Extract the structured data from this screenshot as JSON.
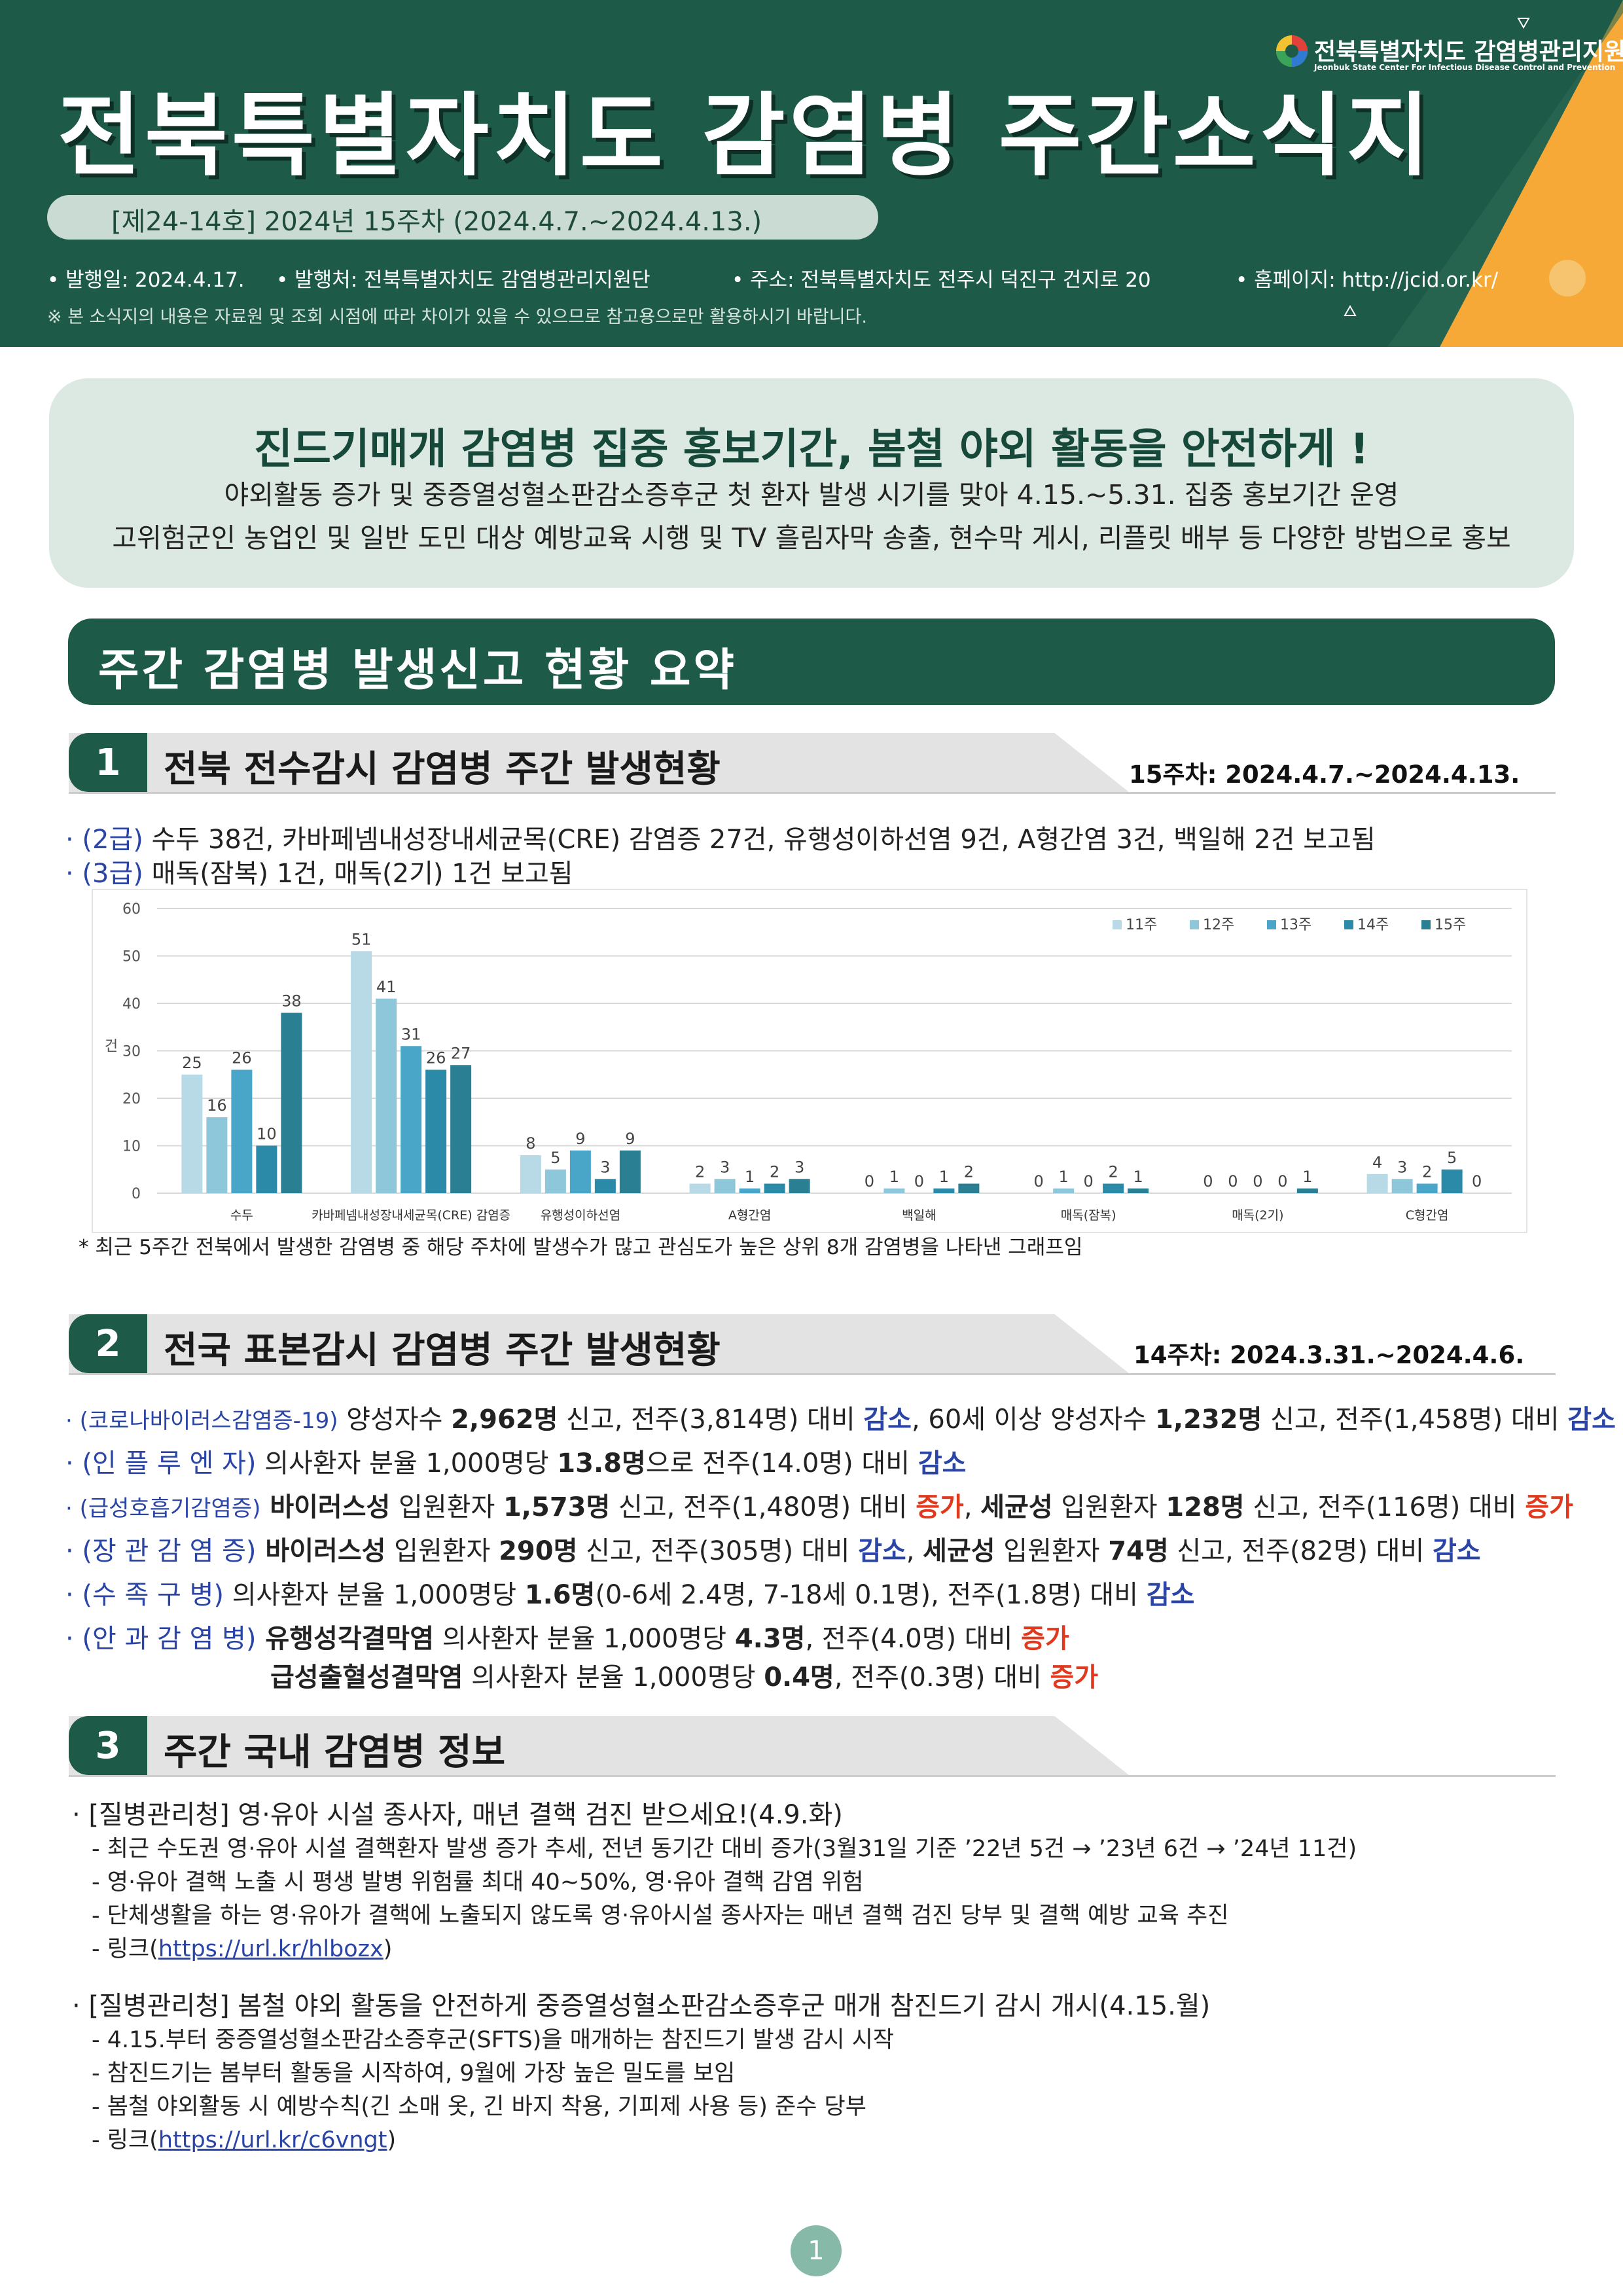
{
  "header": {
    "title": "전북특별자치도  감염병  주간소식지",
    "issue": "[제24-14호] 2024년 15주차 (2024.4.7.~2024.4.13.)",
    "published": "• 발행일: 2024.4.17.",
    "publisher": "• 발행처: 전북특별자치도 감염병관리지원단",
    "address": "• 주소: 전북특별자치도 전주시 덕진구 건지로 20",
    "homepage": "• 홈페이지: http://jcid.or.kr/",
    "note": "※ 본 소식지의 내용은 자료원 및 조회 시점에 따라 차이가 있을 수 있으므로 참고용으로만 활용하시기 바랍니다.",
    "org_name": "전북특별자치도 감염병관리지원단",
    "org_name_en": "Jeonbuk State Center For Infectious Disease Control and Prevention",
    "colors": {
      "primary": "#1e5a48",
      "accent": "#f6a936",
      "light": "#dce9e3"
    }
  },
  "banner": {
    "title": "진드기매개 감염병 집중 홍보기간, 봄철 야외 활동을 안전하게 !",
    "line1": "야외활동 증가 및 중증열성혈소판감소증후군 첫 환자 발생 시기를 맞아 4.15.~5.31. 집중 홍보기간 운영",
    "line2": "고위험군인 농업인 및 일반 도민 대상 예방교육 시행 및 TV 흘림자막 송출, 현수막 게시, 리플릿 배부 등 다양한 방법으로 홍보"
  },
  "summary_title": "주간 감염병 발생신고 현황 요약",
  "section1": {
    "num": "1",
    "title": "전북 전수감시 감염병 주간 발생현황",
    "period": "15주차: 2024.4.7.~2024.4.13.",
    "l1_label": "· (2급)",
    "l1_text": " 수두 38건, 카바페넴내성장내세균목(CRE) 감염증 27건, 유행성이하선염 9건, A형간염 3건, 백일해 2건 보고됨",
    "l2_label": "· (3급)",
    "l2_text": " 매독(잠복) 1건, 매독(2기) 1건 보고됨",
    "chart_note": "* 최근 5주간 전북에서 발생한 감염병 중 해당 주차에 발생수가 많고 관심도가 높은 상위 8개 감염병을 나타낸 그래프임"
  },
  "chart_data": {
    "type": "bar",
    "ylabel": "건",
    "ylim": [
      0,
      60
    ],
    "yticks": [
      0,
      10,
      20,
      30,
      40,
      50,
      60
    ],
    "legend_position": "top-right",
    "categories": [
      "수두",
      "카바페넴내성장내세균목(CRE) 감염증",
      "유행성이하선염",
      "A형간염",
      "백일해",
      "매독(잠복)",
      "매독(2기)",
      "C형간염"
    ],
    "series": [
      {
        "name": "11주",
        "color": "#b8d9e6",
        "values": [
          25,
          51,
          8,
          2,
          0,
          0,
          0,
          4
        ]
      },
      {
        "name": "12주",
        "color": "#8ec7d9",
        "values": [
          16,
          41,
          5,
          3,
          1,
          1,
          0,
          3
        ]
      },
      {
        "name": "13주",
        "color": "#4aa6c9",
        "values": [
          26,
          31,
          9,
          1,
          0,
          0,
          0,
          2
        ]
      },
      {
        "name": "14주",
        "color": "#2b8aa8",
        "values": [
          10,
          26,
          3,
          2,
          1,
          2,
          0,
          5
        ]
      },
      {
        "name": "15주",
        "color": "#2a7f93",
        "values": [
          38,
          27,
          9,
          3,
          2,
          1,
          1,
          0
        ]
      }
    ]
  },
  "section2": {
    "num": "2",
    "title": "전국 표본감시 감염병 주간 발생현황",
    "period": "14주차: 2024.3.31.~2024.4.6.",
    "r1": {
      "label": "· (코로나바이러스감염증-19)",
      "t1": " 양성자수 ",
      "b1": "2,962명",
      "t2": " 신고, 전주(3,814명) 대비 ",
      "c1": "감소",
      "t3": ", 60세 이상 양성자수 ",
      "b2": "1,232명",
      "t4": " 신고, 전주(1,458명) 대비 ",
      "c2": "감소"
    },
    "r2": {
      "label": "· (인 플 루 엔 자)",
      "t1": " 의사환자 분율 1,000명당 ",
      "b1": "13.8명",
      "t2": "으로 전주(14.0명) 대비 ",
      "c1": "감소"
    },
    "r3": {
      "label": "· (급성호흡기감염증)",
      "b1": " 바이러스성",
      "t1": " 입원환자 ",
      "b2": "1,573명",
      "t2": " 신고, 전주(1,480명) 대비 ",
      "c1": "증가",
      "t3": ", ",
      "b3": "세균성",
      "t4": " 입원환자 ",
      "b4": "128명",
      "t5": " 신고, 전주(116명) 대비 ",
      "c2": "증가"
    },
    "r4": {
      "label": "· (장 관 감 염 증)",
      "b1": " 바이러스성",
      "t1": " 입원환자 ",
      "b2": "290명",
      "t2": " 신고, 전주(305명) 대비 ",
      "c1": "감소",
      "t3": ", ",
      "b3": "세균성",
      "t4": " 입원환자 ",
      "b4": "74명",
      "t5": " 신고, 전주(82명) 대비 ",
      "c2": "감소"
    },
    "r5": {
      "label": "· (수  족  구  병)",
      "t1": " 의사환자 분율 1,000명당 ",
      "b1": "1.6명",
      "t2": "(0-6세 2.4명, 7-18세 0.1명), 전주(1.8명) 대비 ",
      "c1": "감소"
    },
    "r6": {
      "label": "· (안 과 감 염 병)",
      "b1": " 유행성각결막염",
      "t1": " 의사환자 분율 1,000명당 ",
      "b2": "4.3명",
      "t2": ", 전주(4.0명) 대비 ",
      "c1": "증가"
    },
    "r7": {
      "b1": "급성출혈성결막염",
      "t1": " 의사환자 분율 1,000명당 ",
      "b2": "0.4명",
      "t2": ", 전주(0.3명) 대비 ",
      "c1": "증가"
    }
  },
  "section3": {
    "num": "3",
    "title": "주간 국내 감염병 정보",
    "news1": {
      "head": "·  [질병관리청] 영·유아 시설 종사자, 매년 결핵 검진 받으세요!(4.9.화)",
      "items": [
        "- 최근 수도권 영·유아 시설 결핵환자 발생 증가 추세, 전년 동기간 대비 증가(3월31일 기준 ’22년 5건 → ’23년 6건 → ’24년 11건)",
        "- 영·유아 결핵 노출 시 평생 발병 위험률 최대 40~50%, 영·유아 결핵 감염 위험",
        "- 단체생활을 하는 영·유아가 결핵에 노출되지 않도록 영·유아시설 종사자는 매년 결핵 검진 당부 및 결핵 예방 교육 추진"
      ],
      "link_prefix": "- 링크(",
      "link": "https://url.kr/hlbozx",
      "link_suffix": ")"
    },
    "news2": {
      "head": "·  [질병관리청] 봄철 야외 활동을 안전하게 중증열성혈소판감소증후군 매개 참진드기 감시 개시(4.15.월)",
      "items": [
        "- 4.15.부터 중증열성혈소판감소증후군(SFTS)을 매개하는 참진드기 발생 감시 시작",
        "- 참진드기는 봄부터 활동을 시작하여, 9월에 가장 높은 밀도를 보임",
        "- 봄철 야외활동 시 예방수칙(긴 소매 옷, 긴 바지 착용, 기피제 사용 등) 준수 당부"
      ],
      "link_prefix": "- 링크(",
      "link": "https://url.kr/c6vngt",
      "link_suffix": ")"
    }
  },
  "page_number": "1"
}
